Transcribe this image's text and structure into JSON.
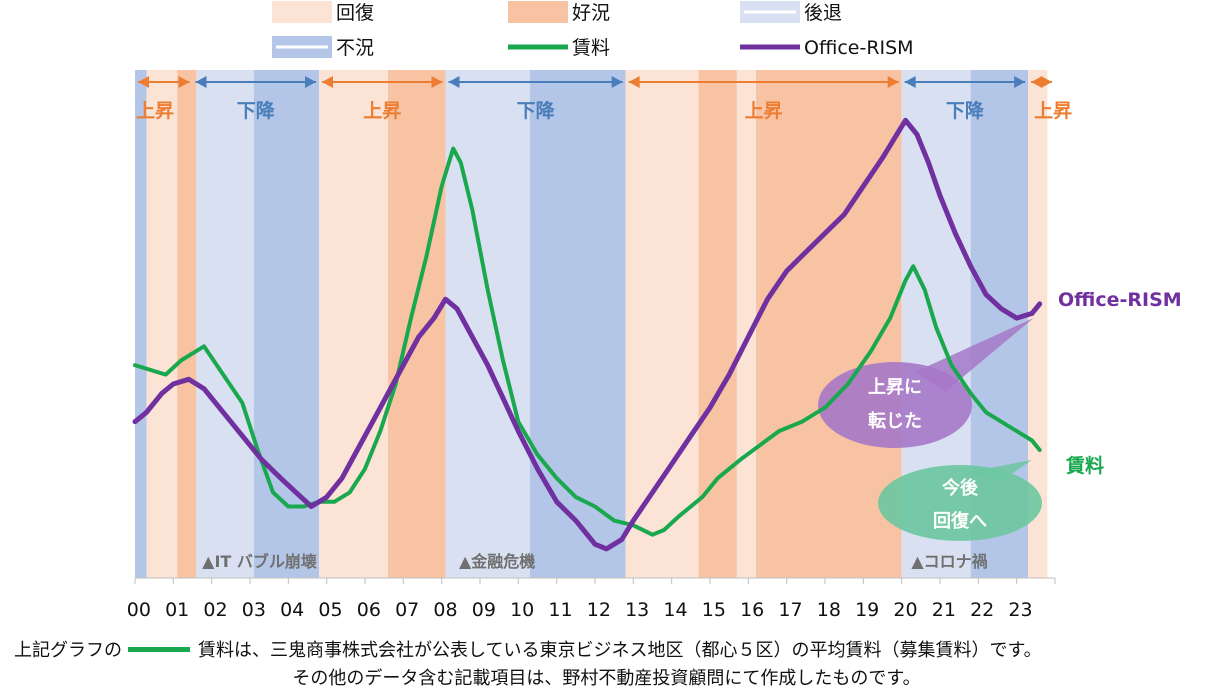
{
  "chart_data": {
    "type": "line",
    "x_tick_labels": [
      "00",
      "01",
      "02",
      "03",
      "04",
      "05",
      "06",
      "07",
      "08",
      "09",
      "10",
      "11",
      "12",
      "13",
      "14",
      "15",
      "16",
      "17",
      "18",
      "19",
      "20",
      "21",
      "22",
      "23"
    ],
    "x_range": [
      0,
      24
    ],
    "y_axis_visible": false,
    "legend": [
      {
        "label": "回復",
        "kind": "band",
        "color": "#fbe3d6"
      },
      {
        "label": "好況",
        "kind": "band",
        "color": "#f7c3a3"
      },
      {
        "label": "後退",
        "kind": "band",
        "color": "#d8e0f2"
      },
      {
        "label": "不況",
        "kind": "band",
        "color": "#b4c6e7"
      },
      {
        "label": "賃料",
        "kind": "line",
        "color": "#1aa84f"
      },
      {
        "label": "Office-RISM",
        "kind": "line",
        "color": "#7030a0"
      }
    ],
    "phases": [
      {
        "start": 0.0,
        "end": 0.3,
        "phase": "不況"
      },
      {
        "start": 0.3,
        "end": 1.1,
        "phase": "回復"
      },
      {
        "start": 1.1,
        "end": 1.6,
        "phase": "好況"
      },
      {
        "start": 1.6,
        "end": 3.1,
        "phase": "後退"
      },
      {
        "start": 3.1,
        "end": 4.8,
        "phase": "不況"
      },
      {
        "start": 4.8,
        "end": 6.6,
        "phase": "回復"
      },
      {
        "start": 6.6,
        "end": 8.1,
        "phase": "好況"
      },
      {
        "start": 8.1,
        "end": 10.3,
        "phase": "後退"
      },
      {
        "start": 10.3,
        "end": 12.8,
        "phase": "不況"
      },
      {
        "start": 12.8,
        "end": 14.7,
        "phase": "回復"
      },
      {
        "start": 14.7,
        "end": 15.7,
        "phase": "好況"
      },
      {
        "start": 15.7,
        "end": 16.2,
        "phase": "回復"
      },
      {
        "start": 16.2,
        "end": 20.0,
        "phase": "好況"
      },
      {
        "start": 20.0,
        "end": 21.8,
        "phase": "後退"
      },
      {
        "start": 21.8,
        "end": 23.3,
        "phase": "不況"
      },
      {
        "start": 23.3,
        "end": 23.8,
        "phase": "回復"
      }
    ],
    "trends": [
      {
        "label": "上昇",
        "start": 0.0,
        "end": 1.5,
        "direction": "up",
        "color": "#ed7d31"
      },
      {
        "label": "下降",
        "start": 1.5,
        "end": 4.8,
        "direction": "down",
        "color": "#4a7ebb"
      },
      {
        "label": "上昇",
        "start": 4.8,
        "end": 8.1,
        "direction": "up",
        "color": "#ed7d31"
      },
      {
        "label": "下降",
        "start": 8.1,
        "end": 12.8,
        "direction": "down",
        "color": "#4a7ebb"
      },
      {
        "label": "上昇",
        "start": 12.8,
        "end": 20.0,
        "direction": "up",
        "color": "#ed7d31"
      },
      {
        "label": "下降",
        "start": 20.0,
        "end": 23.3,
        "direction": "down",
        "color": "#4a7ebb"
      },
      {
        "label": "上昇",
        "start": 23.3,
        "end": 24.0,
        "direction": "up",
        "color": "#ed7d31"
      }
    ],
    "series": [
      {
        "name": "賃料",
        "color": "#1aa84f",
        "x": [
          0.0,
          0.8,
          1.2,
          1.8,
          2.3,
          2.8,
          3.2,
          3.6,
          4.0,
          4.4,
          4.8,
          5.2,
          5.6,
          6.0,
          6.4,
          6.8,
          7.2,
          7.6,
          8.0,
          8.3,
          8.5,
          8.8,
          9.2,
          9.6,
          10.0,
          10.5,
          11.0,
          11.5,
          12.0,
          12.5,
          13.0,
          13.5,
          13.8,
          14.2,
          14.8,
          15.2,
          15.8,
          16.3,
          16.8,
          17.4,
          18.0,
          18.6,
          19.2,
          19.7,
          20.1,
          20.3,
          20.6,
          20.9,
          21.3,
          21.8,
          22.2,
          22.6,
          23.0,
          23.4,
          23.6
        ],
        "y": [
          42,
          40,
          43,
          46,
          40,
          34,
          24,
          15,
          12,
          12,
          13,
          13,
          15,
          20,
          28,
          38,
          52,
          65,
          80,
          88,
          85,
          75,
          58,
          43,
          30,
          23,
          18,
          14,
          12,
          9,
          8,
          6,
          7,
          10,
          14,
          18,
          22,
          25,
          28,
          30,
          33,
          38,
          45,
          52,
          60,
          63,
          58,
          50,
          42,
          36,
          32,
          30,
          28,
          26,
          24
        ]
      },
      {
        "name": "Office-RISM",
        "color": "#7030a0",
        "x": [
          0.0,
          0.3,
          0.7,
          1.0,
          1.4,
          1.8,
          2.3,
          2.8,
          3.3,
          3.8,
          4.2,
          4.6,
          5.0,
          5.4,
          5.8,
          6.2,
          6.6,
          7.0,
          7.4,
          7.8,
          8.1,
          8.4,
          8.8,
          9.2,
          9.6,
          10.0,
          10.5,
          11.0,
          11.5,
          11.8,
          12.0,
          12.3,
          12.7,
          13.0,
          13.5,
          14.0,
          14.5,
          15.0,
          15.5,
          16.0,
          16.5,
          17.0,
          17.5,
          18.0,
          18.5,
          19.0,
          19.5,
          19.8,
          20.1,
          20.4,
          20.7,
          21.0,
          21.4,
          21.8,
          22.2,
          22.6,
          23.0,
          23.4,
          23.6
        ],
        "y": [
          30,
          32,
          36,
          38,
          39,
          37,
          32,
          27,
          22,
          18,
          15,
          12,
          14,
          18,
          24,
          30,
          36,
          42,
          48,
          52,
          56,
          54,
          48,
          42,
          35,
          28,
          20,
          13,
          9,
          6,
          4,
          3,
          5,
          9,
          15,
          21,
          27,
          33,
          40,
          48,
          56,
          62,
          66,
          70,
          74,
          80,
          86,
          90,
          94,
          91,
          85,
          78,
          70,
          63,
          57,
          54,
          52,
          53,
          55
        ]
      }
    ],
    "events": [
      {
        "label": "▲IT バブル崩壊",
        "x": 1.7
      },
      {
        "label": "▲金融危機",
        "x": 8.4
      },
      {
        "label": "▲コロナ禍",
        "x": 20.2
      }
    ],
    "end_labels": [
      {
        "label": "Office-RISM",
        "color": "#7030a0"
      },
      {
        "label": "賃料",
        "color": "#1aa84f"
      }
    ],
    "callouts": [
      {
        "lines": [
          "上昇に",
          "転じた"
        ],
        "color": "#a678c8"
      },
      {
        "lines": [
          "今後",
          "回復へ"
        ],
        "color": "#6cc6a0"
      }
    ]
  },
  "footnote": {
    "line1_lead": "上記グラフの",
    "line1_rest": "賃料は、三鬼商事株式会社が公表している東京ビジネス地区（都心５区）の平均賃料（募集賃料）です。",
    "line2": "その他のデータ含む記載項目は、野村不動産投資顧問にて作成したものです。"
  }
}
